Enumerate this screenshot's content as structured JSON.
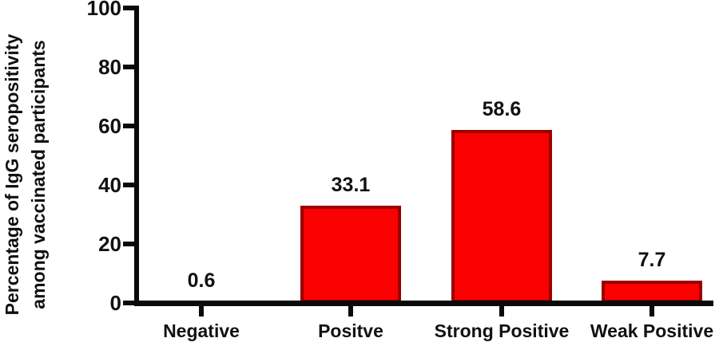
{
  "chart_data": {
    "type": "bar",
    "title": "",
    "categories": [
      "Negative",
      "Positve",
      "Strong Positive",
      "Weak Positive"
    ],
    "values": [
      0.6,
      33.1,
      58.6,
      7.7
    ],
    "value_labels": [
      "0.6",
      "33.1",
      "58.6",
      "7.7"
    ],
    "ylabel_lines": [
      "Percentage of IgG seropositivity",
      "among vaccinated participants"
    ],
    "xlabel": "",
    "ylim": [
      0,
      100
    ],
    "yticks": [
      0,
      20,
      40,
      60,
      80,
      100
    ],
    "grid": false,
    "legend": "none",
    "colors": {
      "bar_fill": "#fa0000",
      "bar_border": "#9b0000",
      "axis": "#0a0a0a",
      "text": "#111111",
      "background": "#ffffff"
    }
  }
}
